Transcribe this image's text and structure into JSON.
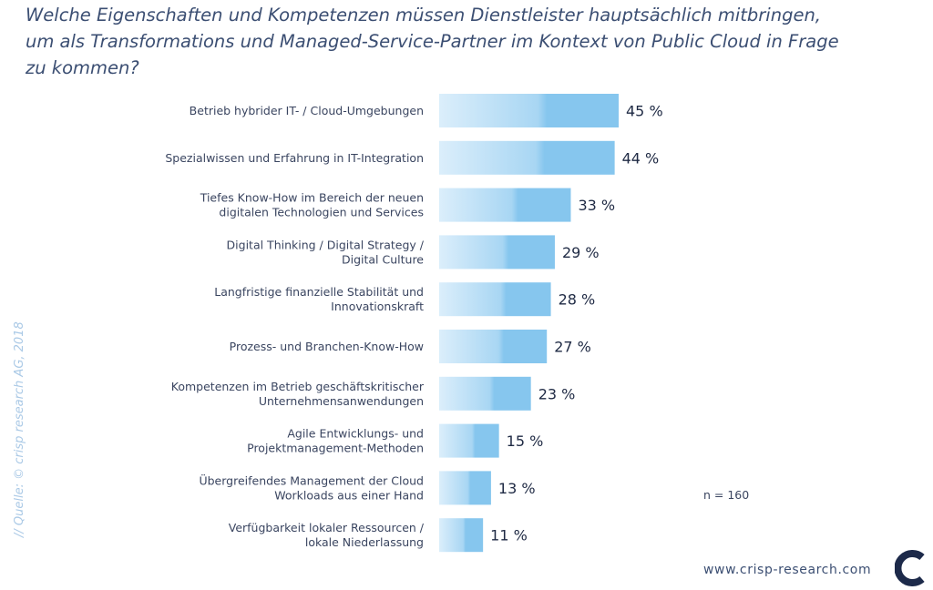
{
  "title_lines": [
    "Welche Eigenschaften und Kompetenzen müssen Dienstleister hauptsächlich mitbringen,",
    "um als Transformations und Managed-Service-Partner im Kontext von Public Cloud in Frage",
    "zu kommen?"
  ],
  "source": "// Quelle: © crisp research AG, 2018",
  "sample_note": "n = 160",
  "website": "www.crisp-research.com",
  "colors": {
    "bar_start": "#dbeefb",
    "bar_end": "#86c6ee",
    "text": "#3a4560",
    "title": "#3c4f73",
    "logo": "#1d2a4a"
  },
  "chart_data": {
    "type": "bar",
    "orientation": "horizontal",
    "title": "Welche Eigenschaften und Kompetenzen müssen Dienstleister hauptsächlich mitbringen, um als Transformations und Managed-Service-Partner im Kontext von Public Cloud in Frage zu kommen?",
    "unit": "%",
    "xlim": [
      0,
      100
    ],
    "grid": false,
    "categories": [
      [
        "Betrieb hybrider IT- / Cloud-Umgebungen"
      ],
      [
        "Spezialwissen und Erfahrung in IT-Integration"
      ],
      [
        "Tiefes Know-How im Bereich der neuen",
        "digitalen Technologien und Services"
      ],
      [
        "Digital Thinking / Digital Strategy /",
        "Digital Culture"
      ],
      [
        "Langfristige finanzielle Stabilität und",
        "Innovationskraft"
      ],
      [
        "Prozess- und Branchen-Know-How"
      ],
      [
        "Kompetenzen im Betrieb geschäftskritischer",
        "Unternehmensanwendungen"
      ],
      [
        "Agile Entwicklungs- und",
        "Projektmanagement-Methoden"
      ],
      [
        "Übergreifendes Management der Cloud",
        "Workloads aus einer Hand"
      ],
      [
        "Verfügbarkeit lokaler Ressourcen /",
        "lokale Niederlassung"
      ]
    ],
    "values": [
      45,
      44,
      33,
      29,
      28,
      27,
      23,
      15,
      13,
      11
    ],
    "value_labels": [
      "45 %",
      "44 %",
      "33 %",
      "29 %",
      "28 %",
      "27 %",
      "23 %",
      "15 %",
      "13 %",
      "11 %"
    ]
  }
}
